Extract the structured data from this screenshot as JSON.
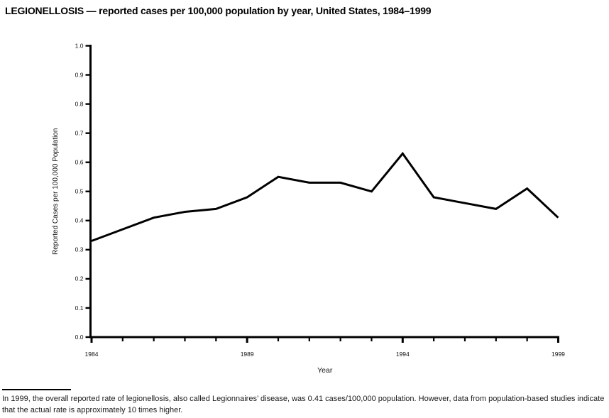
{
  "chart_data": {
    "type": "line",
    "title": "LEGIONELLOSIS — reported cases per 100,000 population by year, United States, 1984–1999",
    "x": [
      1984,
      1985,
      1986,
      1987,
      1988,
      1989,
      1990,
      1991,
      1992,
      1993,
      1994,
      1995,
      1996,
      1997,
      1998,
      1999
    ],
    "values": [
      0.33,
      0.37,
      0.41,
      0.43,
      0.44,
      0.48,
      0.55,
      0.53,
      0.53,
      0.5,
      0.63,
      0.48,
      0.46,
      0.44,
      0.51,
      0.41
    ],
    "xlabel": "Year",
    "ylabel": "Reported Cases per 100,000 Population",
    "ylim": [
      0.0,
      1.0
    ],
    "ytick_step": 0.1,
    "xticks_labeled": [
      1984,
      1989,
      1994,
      1999
    ],
    "line_color": "#000000",
    "axis_color": "#000000",
    "grid": false
  },
  "footnote": {
    "text": "In 1999, the overall reported rate of legionellosis, also called Legionnaires’ disease, was 0.41 cases/100,000 population. However, data from population-based studies indicate that the actual rate is approximately 10 times higher."
  }
}
